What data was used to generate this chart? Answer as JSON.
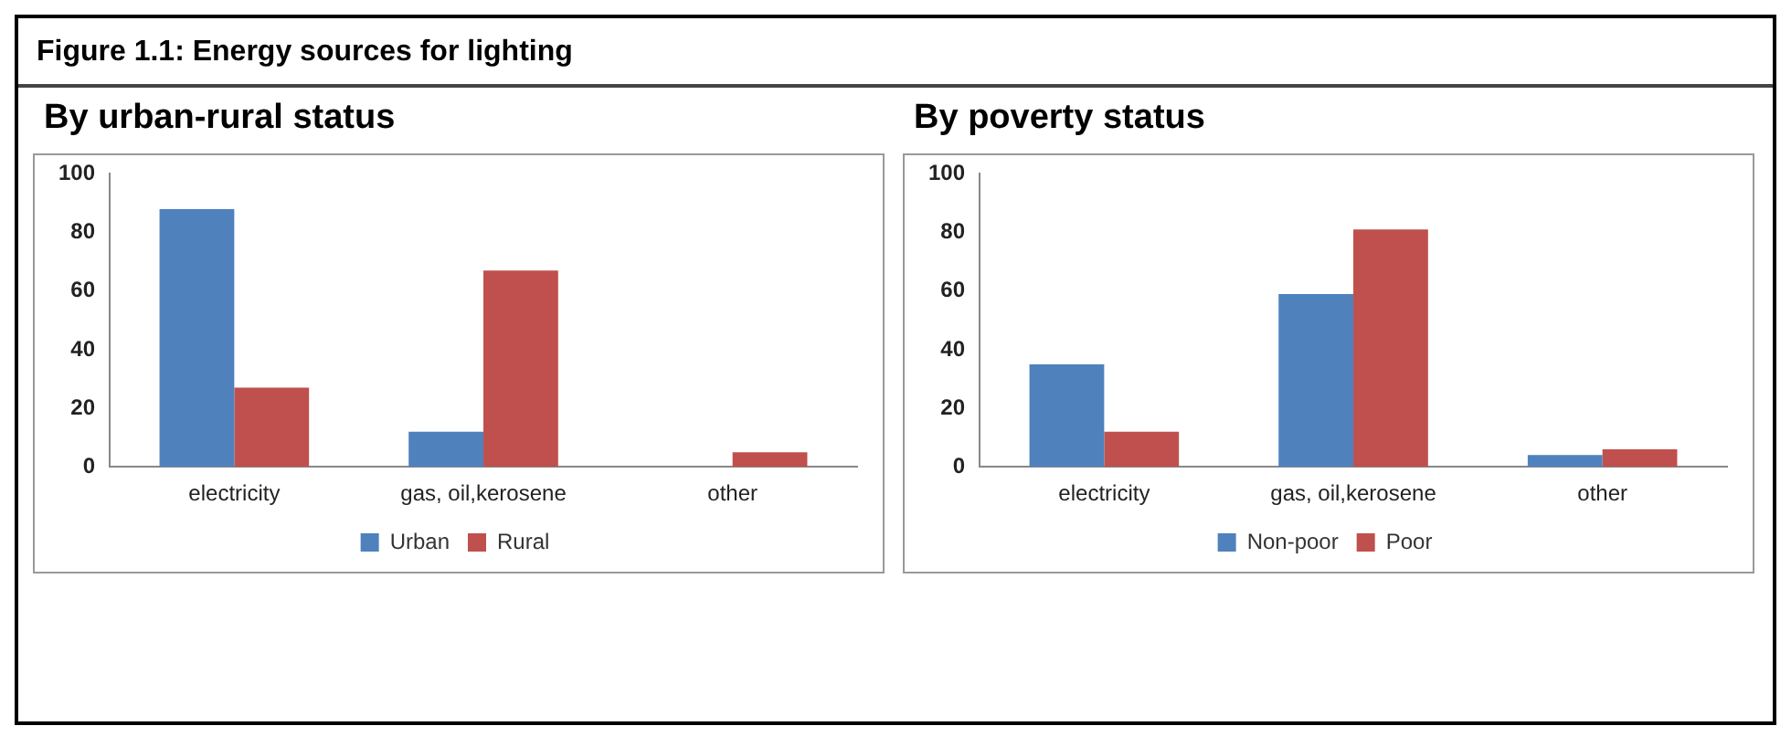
{
  "chart_data": [
    {
      "type": "bar",
      "title": "Figure 1.1: Energy sources for lighting",
      "subtitle": "By urban-rural status",
      "categories": [
        "electricity",
        "gas, oil,kerosene",
        "other"
      ],
      "series": [
        {
          "name": "Urban",
          "color": "#4f81bd",
          "values": [
            88,
            12,
            0
          ]
        },
        {
          "name": "Rural",
          "color": "#c0504d",
          "values": [
            27,
            67,
            5
          ]
        }
      ],
      "ylim": [
        0,
        100
      ],
      "yticks": [
        0,
        20,
        40,
        60,
        80,
        100
      ],
      "grid": false,
      "legend": "bottom"
    },
    {
      "type": "bar",
      "subtitle": "By poverty status",
      "categories": [
        "electricity",
        "gas, oil,kerosene",
        "other"
      ],
      "series": [
        {
          "name": "Non-poor",
          "color": "#4f81bd",
          "values": [
            35,
            59,
            4
          ]
        },
        {
          "name": "Poor",
          "color": "#c0504d",
          "values": [
            12,
            81,
            6
          ]
        }
      ],
      "ylim": [
        0,
        100
      ],
      "yticks": [
        0,
        20,
        40,
        60,
        80,
        100
      ],
      "grid": false,
      "legend": "bottom"
    }
  ]
}
